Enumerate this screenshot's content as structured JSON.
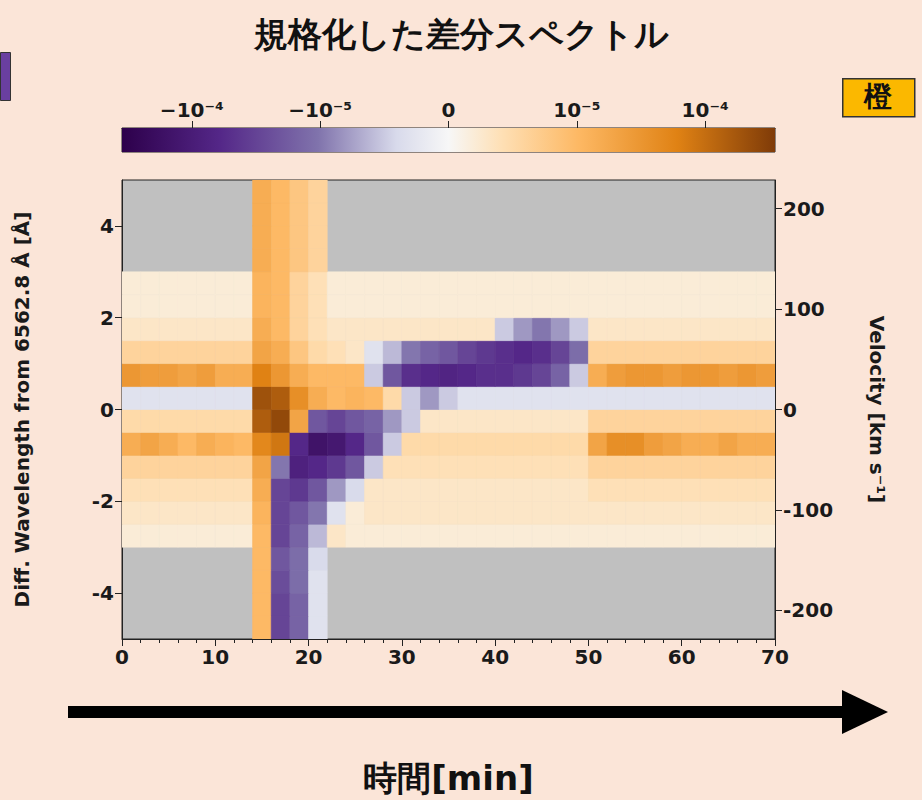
{
  "chart_data": {
    "type": "heatmap",
    "title": "規格化した差分スペクトル",
    "xlabel": "時間[min]",
    "ylabel": "Diff. Wavelength from 6562.8 Å [Å]",
    "y2label": "Velocity [km s⁻¹]",
    "annotations": [
      "橙"
    ],
    "xlim": [
      0,
      70
    ],
    "xticks": [
      0,
      10,
      20,
      30,
      40,
      50,
      60,
      70
    ],
    "ylim": [
      -5,
      5
    ],
    "yticks": [
      -4,
      -2,
      0,
      2,
      4
    ],
    "y2lim": [
      -228.4,
      228.4
    ],
    "y2ticks": [
      -200,
      -100,
      0,
      100,
      200
    ],
    "colorbar_range": [
      -0.00035,
      0.00035
    ],
    "colorbar_ticks": [
      {
        "value": -0.0001,
        "label": "−10⁻⁴"
      },
      {
        "value": -1e-05,
        "label": "−10⁻⁵"
      },
      0,
      {
        "value": 1e-05,
        "label": "10⁻⁵"
      },
      {
        "value": 0.0001,
        "label": "10⁻⁴"
      }
    ],
    "time_bins": [
      0,
      2,
      4,
      6,
      8,
      10,
      12,
      14,
      16,
      18,
      20,
      22,
      24,
      26,
      28,
      30,
      32,
      34,
      36,
      38,
      40,
      42,
      44,
      46,
      48,
      50,
      52,
      54,
      56,
      58,
      60,
      62,
      64,
      66,
      68,
      70
    ],
    "wavelength_bins": [
      -5,
      -4.5,
      -4,
      -3.5,
      -3,
      -2.5,
      -2,
      -1.5,
      -1,
      -0.5,
      0,
      0.5,
      1,
      1.5,
      2,
      2.5,
      3,
      3.5,
      4,
      4.5,
      5
    ],
    "cells": [
      [
        null,
        null,
        null,
        null,
        null,
        null,
        null,
        1e-05,
        -3e-05,
        -1.5e-05,
        -3e-06,
        null,
        null,
        null,
        null,
        null,
        null,
        null,
        null,
        null,
        null,
        null,
        null,
        null,
        null,
        null,
        null,
        null,
        null,
        null,
        null,
        null,
        null,
        null,
        null
      ],
      [
        null,
        null,
        null,
        null,
        null,
        null,
        null,
        1e-05,
        -3e-05,
        -1.5e-05,
        -3e-06,
        null,
        null,
        null,
        null,
        null,
        null,
        null,
        null,
        null,
        null,
        null,
        null,
        null,
        null,
        null,
        null,
        null,
        null,
        null,
        null,
        null,
        null,
        null,
        null
      ],
      [
        null,
        null,
        null,
        null,
        null,
        null,
        null,
        1e-05,
        -2.5e-05,
        -1.2e-05,
        -3e-06,
        null,
        null,
        null,
        null,
        null,
        null,
        null,
        null,
        null,
        null,
        null,
        null,
        null,
        null,
        null,
        null,
        null,
        null,
        null,
        null,
        null,
        null,
        null,
        null
      ],
      [
        null,
        null,
        null,
        null,
        null,
        null,
        null,
        1e-05,
        -2e-05,
        -1.2e-05,
        -4e-06,
        null,
        null,
        null,
        null,
        null,
        null,
        null,
        null,
        null,
        null,
        null,
        null,
        null,
        null,
        null,
        null,
        null,
        null,
        null,
        null,
        null,
        null,
        null,
        null
      ],
      [
        2e-06,
        2e-06,
        2e-06,
        2e-06,
        2e-06,
        2e-06,
        2e-06,
        1e-05,
        -3e-05,
        -1.5e-05,
        -6e-06,
        3e-06,
        2e-06,
        2e-06,
        2e-06,
        2e-06,
        2e-06,
        2e-06,
        2e-06,
        2e-06,
        2e-06,
        2e-06,
        2e-06,
        2e-06,
        2e-06,
        2e-06,
        2e-06,
        2e-06,
        2e-06,
        2e-06,
        2e-06,
        2e-06,
        2e-06,
        2e-06,
        2e-06
      ],
      [
        3e-06,
        3e-06,
        3e-06,
        3e-06,
        3e-06,
        3e-06,
        3e-06,
        1.2e-05,
        -3e-05,
        -2e-05,
        -1e-05,
        -3e-06,
        2e-06,
        3e-06,
        3e-06,
        3e-06,
        3e-06,
        3e-06,
        3e-06,
        3e-06,
        3e-06,
        3e-06,
        3e-06,
        3e-06,
        3e-06,
        3e-06,
        3e-06,
        3e-06,
        3e-06,
        3e-06,
        3e-06,
        3e-06,
        3e-06,
        3e-06,
        3e-06
      ],
      [
        4e-06,
        4e-06,
        4e-06,
        4e-06,
        4e-06,
        4e-06,
        4e-06,
        1.5e-05,
        -3e-05,
        -4e-05,
        -2e-05,
        -8e-06,
        -4e-06,
        3e-06,
        3e-06,
        3e-06,
        3e-06,
        3e-06,
        3e-06,
        3e-06,
        3e-06,
        3e-06,
        3e-06,
        3e-06,
        3e-06,
        4e-06,
        4e-06,
        4e-06,
        4e-06,
        4e-06,
        4e-06,
        4e-06,
        4e-06,
        4e-06,
        4e-06
      ],
      [
        6e-06,
        6e-06,
        6e-06,
        6e-06,
        6e-06,
        6e-06,
        6e-06,
        2e-05,
        -1e-05,
        -8e-05,
        -6e-05,
        -4e-05,
        -2e-05,
        -5e-06,
        4e-06,
        4e-06,
        4e-06,
        4e-06,
        4e-06,
        4e-06,
        4e-06,
        4e-06,
        4e-06,
        4e-06,
        4e-06,
        6e-06,
        6e-06,
        6e-06,
        6e-06,
        6e-06,
        6e-06,
        6e-06,
        6e-06,
        6e-06,
        6e-06
      ],
      [
        1.5e-05,
        2e-05,
        1.5e-05,
        1e-05,
        1.5e-05,
        1.2e-05,
        1e-05,
        5e-05,
        8e-05,
        -6e-05,
        -0.00015,
        -0.00012,
        -6e-05,
        -2e-05,
        -5e-06,
        5e-06,
        5e-06,
        5e-06,
        5e-06,
        5e-06,
        5e-06,
        5e-06,
        5e-06,
        5e-06,
        5e-06,
        2e-05,
        4e-05,
        4e-05,
        2.5e-05,
        2e-05,
        1.5e-05,
        1.5e-05,
        2e-05,
        1.5e-05,
        1.5e-05
      ],
      [
        5e-06,
        5e-06,
        5e-06,
        5e-06,
        5e-06,
        5e-06,
        5e-06,
        0.00015,
        0.00025,
        2e-05,
        -2e-05,
        -3e-05,
        -2e-05,
        -1.5e-05,
        -8e-06,
        -5e-06,
        3e-06,
        3e-06,
        3e-06,
        3e-06,
        3e-06,
        3e-06,
        3e-06,
        3e-06,
        3e-06,
        6e-06,
        6e-06,
        6e-06,
        6e-06,
        6e-06,
        6e-06,
        6e-06,
        6e-06,
        6e-06,
        6e-06
      ],
      [
        -3e-06,
        -3e-06,
        -3e-06,
        -3e-06,
        -3e-06,
        -3e-06,
        -3e-06,
        0.0002,
        0.00015,
        4e-05,
        1.5e-05,
        1e-05,
        1.2e-05,
        1e-05,
        5e-06,
        -5e-06,
        -8e-06,
        -5e-06,
        -3e-06,
        -3e-06,
        -3e-06,
        -3e-06,
        -3e-06,
        -3e-06,
        -3e-06,
        -3e-06,
        -3e-06,
        -3e-06,
        -3e-06,
        -3e-06,
        -3e-06,
        -3e-06,
        -3e-06,
        -3e-06,
        -3e-06
      ],
      [
        3e-05,
        2.5e-05,
        2.5e-05,
        2e-05,
        2.5e-05,
        1.5e-05,
        1.5e-05,
        6e-05,
        3e-05,
        1.5e-05,
        1e-05,
        1e-05,
        1e-05,
        -5e-06,
        -2e-05,
        -5e-05,
        -6e-05,
        -7e-05,
        -6e-05,
        -5e-05,
        -5e-05,
        -4e-05,
        -3e-05,
        -1.5e-05,
        -5e-06,
        1.5e-05,
        2.5e-05,
        3e-05,
        3e-05,
        2.5e-05,
        3e-05,
        3e-05,
        2.5e-05,
        3e-05,
        2.5e-05
      ],
      [
        6e-06,
        6e-06,
        6e-06,
        6e-06,
        6e-06,
        6e-06,
        6e-06,
        2e-05,
        1.5e-05,
        8e-06,
        5e-06,
        4e-06,
        3e-06,
        -3e-06,
        -6e-06,
        -1e-05,
        -1.5e-05,
        -2e-05,
        -3e-05,
        -4e-05,
        -5e-05,
        -6e-05,
        -5e-05,
        -3e-05,
        -1.2e-05,
        6e-06,
        6e-06,
        6e-06,
        6e-06,
        6e-06,
        6e-06,
        6e-06,
        6e-06,
        6e-06,
        6e-06
      ],
      [
        3e-06,
        3e-06,
        3e-06,
        3e-06,
        3e-06,
        3e-06,
        3e-06,
        1.5e-05,
        1e-05,
        6e-06,
        4e-06,
        3e-06,
        3e-06,
        3e-06,
        3e-06,
        3e-06,
        3e-06,
        3e-06,
        3e-06,
        3e-06,
        -5e-06,
        -8e-06,
        -1e-05,
        -8e-06,
        -5e-06,
        3e-06,
        3e-06,
        3e-06,
        3e-06,
        3e-06,
        3e-06,
        3e-06,
        3e-06,
        3e-06,
        3e-06
      ],
      [
        2e-06,
        2e-06,
        2e-06,
        2e-06,
        2e-06,
        2e-06,
        2e-06,
        1.2e-05,
        1e-05,
        6e-06,
        4e-06,
        2e-06,
        2e-06,
        2e-06,
        2e-06,
        2e-06,
        2e-06,
        2e-06,
        2e-06,
        2e-06,
        2e-06,
        2e-06,
        2e-06,
        2e-06,
        2e-06,
        2e-06,
        2e-06,
        2e-06,
        2e-06,
        2e-06,
        2e-06,
        2e-06,
        2e-06,
        2e-06,
        2e-06
      ],
      [
        2e-06,
        2e-06,
        2e-06,
        2e-06,
        2e-06,
        2e-06,
        2e-06,
        1.2e-05,
        1e-05,
        6e-06,
        4e-06,
        2e-06,
        2e-06,
        2e-06,
        2e-06,
        2e-06,
        2e-06,
        2e-06,
        2e-06,
        2e-06,
        2e-06,
        2e-06,
        2e-06,
        2e-06,
        2e-06,
        2e-06,
        2e-06,
        2e-06,
        2e-06,
        2e-06,
        2e-06,
        2e-06,
        2e-06,
        2e-06,
        2e-06
      ],
      [
        null,
        null,
        null,
        null,
        null,
        null,
        null,
        1.5e-05,
        1e-05,
        8e-06,
        6e-06,
        null,
        null,
        null,
        null,
        null,
        null,
        null,
        null,
        null,
        null,
        null,
        null,
        null,
        null,
        null,
        null,
        null,
        null,
        null,
        null,
        null,
        null,
        null,
        null
      ],
      [
        null,
        null,
        null,
        null,
        null,
        null,
        null,
        1.5e-05,
        1e-05,
        8e-06,
        6e-06,
        null,
        null,
        null,
        null,
        null,
        null,
        null,
        null,
        null,
        null,
        null,
        null,
        null,
        null,
        null,
        null,
        null,
        null,
        null,
        null,
        null,
        null,
        null,
        null
      ],
      [
        null,
        null,
        null,
        null,
        null,
        null,
        null,
        1.5e-05,
        1e-05,
        8e-06,
        6e-06,
        null,
        null,
        null,
        null,
        null,
        null,
        null,
        null,
        null,
        null,
        null,
        null,
        null,
        null,
        null,
        null,
        null,
        null,
        null,
        null,
        null,
        null,
        null,
        null
      ],
      [
        null,
        null,
        null,
        null,
        null,
        null,
        null,
        1.5e-05,
        1e-05,
        8e-06,
        6e-06,
        null,
        null,
        null,
        null,
        null,
        null,
        null,
        null,
        null,
        null,
        null,
        null,
        null,
        null,
        null,
        null,
        null,
        null,
        null,
        null,
        null,
        null,
        null,
        null
      ]
    ]
  }
}
